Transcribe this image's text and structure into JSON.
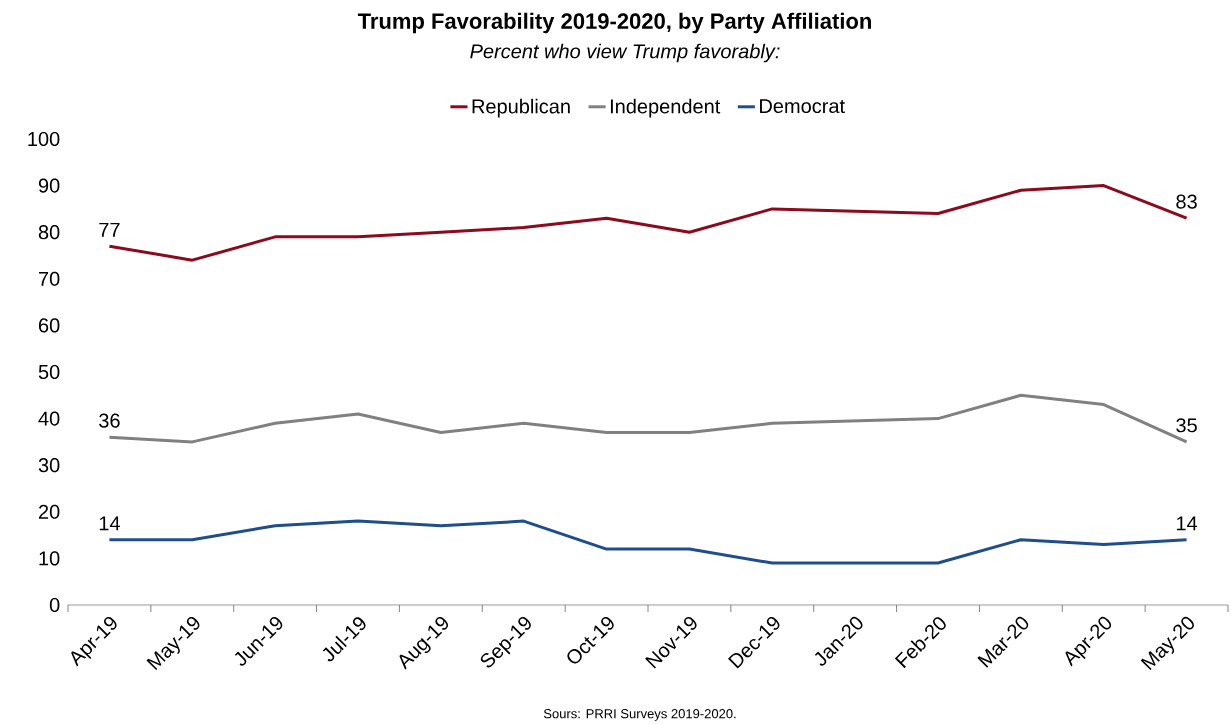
{
  "chart_data": {
    "type": "line",
    "title": "Trump Favorability 2019-2020, by Party Affiliation",
    "subtitle": "Percent who view Trump favorably:",
    "categories": [
      "Apr-19",
      "May-19",
      "Jun-19",
      "Jul-19",
      "Aug-19",
      "Sep-19",
      "Oct-19",
      "Nov-19",
      "Dec-19",
      "Jan-20",
      "Feb-20",
      "Mar-20",
      "Apr-20",
      "May-20"
    ],
    "series": [
      {
        "name": "Republican",
        "color": "#8b0a1e",
        "values": [
          77,
          74,
          79,
          79,
          80,
          81,
          83,
          80,
          85,
          null,
          84,
          89,
          90,
          83
        ],
        "value_labels": [
          "77",
          null,
          null,
          null,
          null,
          null,
          null,
          null,
          null,
          null,
          null,
          null,
          null,
          "83"
        ]
      },
      {
        "name": "Independent",
        "color": "#808080",
        "values": [
          36,
          35,
          39,
          41,
          37,
          39,
          37,
          37,
          39,
          null,
          40,
          45,
          43,
          35
        ],
        "value_labels": [
          "36",
          null,
          null,
          null,
          null,
          null,
          null,
          null,
          null,
          null,
          null,
          null,
          null,
          "35"
        ]
      },
      {
        "name": "Democrat",
        "color": "#1f4e8c",
        "values": [
          14,
          14,
          17,
          18,
          17,
          18,
          12,
          12,
          9,
          null,
          9,
          14,
          13,
          14
        ],
        "value_labels": [
          "14",
          null,
          null,
          null,
          null,
          null,
          null,
          null,
          null,
          null,
          null,
          null,
          null,
          "14"
        ]
      }
    ],
    "ylim": [
      0,
      100
    ],
    "yticks": [
      0,
      10,
      20,
      30,
      40,
      50,
      60,
      70,
      80,
      90,
      100
    ],
    "legend": "top",
    "grid": false,
    "marker": "none",
    "line_style": "solid",
    "annotations": [
      "Sours: PRRI Surveys 2019-2020."
    ]
  }
}
